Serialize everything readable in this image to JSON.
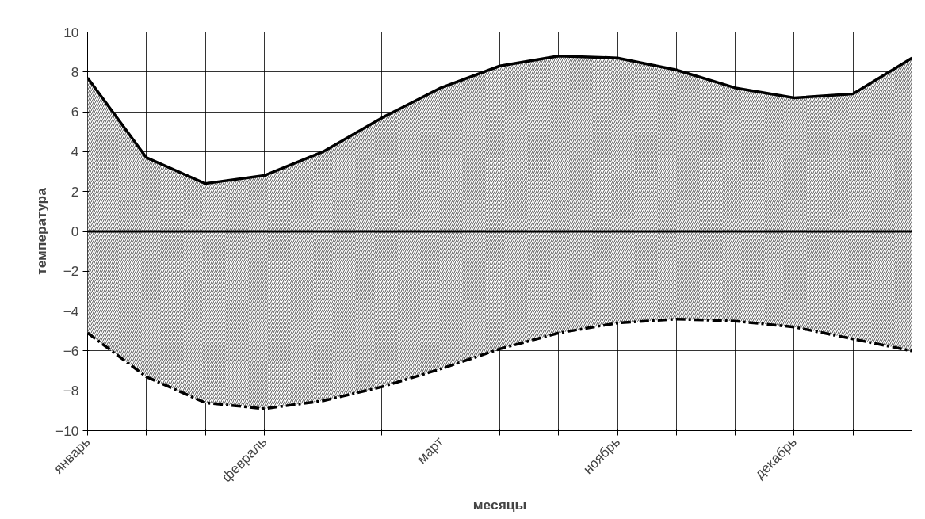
{
  "chart_data": {
    "type": "area",
    "xlabel": "месяцы",
    "ylabel": "температура",
    "categories": [
      "январь",
      null,
      null,
      "февраль",
      null,
      null,
      "март",
      null,
      null,
      "ноябрь",
      null,
      null,
      "декабрь",
      null,
      null
    ],
    "series": [
      {
        "color": "#000000",
        "line_style": "solid",
        "values": [
          7.7,
          3.7,
          2.4,
          2.8,
          4.0,
          5.7,
          7.2,
          8.3,
          8.8,
          8.7,
          8.1,
          7.2,
          6.7,
          6.9,
          8.7
        ]
      },
      {
        "color": "#000000",
        "line_style": "dashed",
        "values": [
          -5.1,
          -7.3,
          -8.6,
          -8.9,
          -8.5,
          -7.8,
          -6.9,
          -5.9,
          -5.1,
          -4.6,
          -4.4,
          -4.5,
          -4.8,
          -5.4,
          -6.0
        ]
      }
    ],
    "ylim": [
      -10,
      10
    ],
    "yticks": [
      -10,
      -8,
      -6,
      -4,
      -2,
      0,
      2,
      4,
      6,
      8,
      10
    ],
    "grid": true
  }
}
